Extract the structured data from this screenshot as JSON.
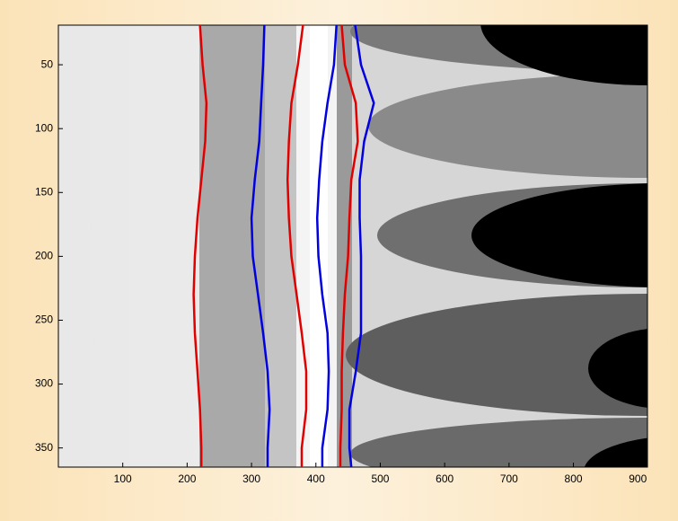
{
  "chart_data": {
    "type": "line",
    "y_reversed": true,
    "xlim": [
      0,
      915
    ],
    "ylim": [
      19,
      365
    ],
    "xticks": [
      100,
      200,
      300,
      400,
      500,
      600,
      700,
      800,
      900
    ],
    "yticks": [
      50,
      100,
      150,
      200,
      250,
      300,
      350
    ],
    "y": [
      19,
      50,
      80,
      110,
      140,
      170,
      200,
      230,
      260,
      290,
      320,
      350,
      365
    ],
    "series": [
      {
        "color": "#e00000",
        "values": [
          220,
          224,
          230,
          228,
          222,
          216,
          212,
          210,
          212,
          216,
          220,
          222,
          222
        ]
      },
      {
        "color": "#0000e0",
        "values": [
          320,
          318,
          315,
          312,
          305,
          300,
          302,
          310,
          318,
          325,
          328,
          325,
          325
        ]
      },
      {
        "color": "#e00000",
        "values": [
          380,
          372,
          362,
          358,
          356,
          358,
          362,
          370,
          378,
          385,
          385,
          378,
          378
        ]
      },
      {
        "color": "#0000e0",
        "values": [
          432,
          428,
          418,
          410,
          405,
          402,
          404,
          410,
          418,
          420,
          418,
          410,
          410
        ]
      },
      {
        "color": "#e00000",
        "values": [
          440,
          445,
          462,
          465,
          455,
          452,
          450,
          445,
          442,
          440,
          440,
          438,
          438
        ]
      },
      {
        "color": "#0000e0",
        "values": [
          461,
          470,
          490,
          475,
          468,
          468,
          470,
          470,
          470,
          462,
          452,
          452,
          455
        ]
      }
    ]
  }
}
